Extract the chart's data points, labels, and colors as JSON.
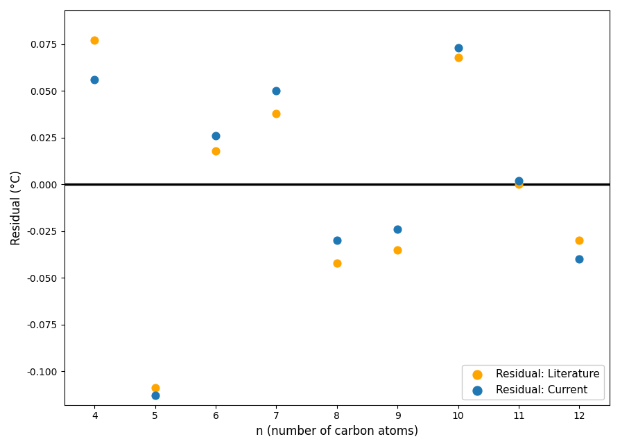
{
  "n": [
    4,
    5,
    6,
    7,
    8,
    9,
    10,
    11,
    12
  ],
  "residual_literature": [
    0.077,
    -0.109,
    0.018,
    0.038,
    -0.042,
    -0.035,
    0.068,
    0.0,
    -0.03
  ],
  "residual_current": [
    0.056,
    -0.113,
    0.026,
    0.05,
    -0.03,
    -0.024,
    0.073,
    0.002,
    -0.04
  ],
  "color_literature": "#FFA500",
  "color_current": "#1f77b4",
  "marker_size": 60,
  "xlabel": "n (number of carbon atoms)",
  "ylabel": "Residual (°C)",
  "legend_literature": "Residual: Literature",
  "legend_current": "Residual: Current",
  "ylim": [
    -0.118,
    0.093
  ],
  "xlim": [
    3.5,
    12.5
  ],
  "xticks": [
    4,
    5,
    6,
    7,
    8,
    9,
    10,
    11,
    12
  ],
  "yticks": [
    0.075,
    0.05,
    0.025,
    0.0,
    -0.025,
    -0.05,
    -0.075,
    -0.1
  ],
  "hline_y": 0.0,
  "hline_color": "#000000",
  "hline_lw": 2.5,
  "legend_loc": "lower right",
  "background_color": "#ffffff"
}
